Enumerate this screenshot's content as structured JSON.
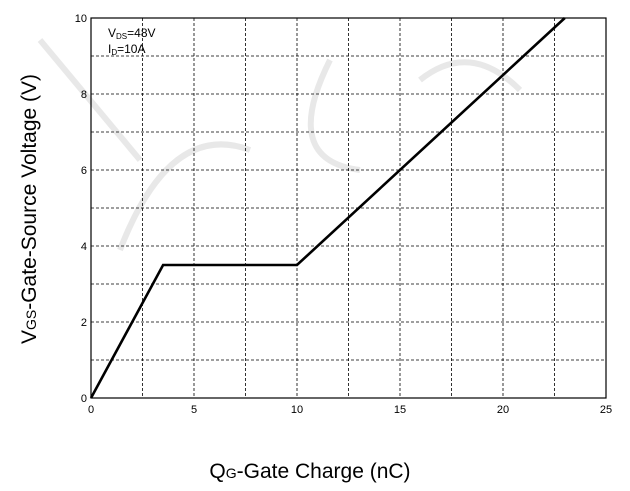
{
  "chart_data": {
    "type": "line",
    "title": "",
    "xlabel": {
      "main": "Q",
      "sub": "G",
      "rest": "-Gate Charge (nC)"
    },
    "ylabel": {
      "main": "V",
      "sub": "GS",
      "rest": "-Gate-Source Voltage (V)"
    },
    "xlim": [
      0,
      25
    ],
    "ylim": [
      0,
      10
    ],
    "xticks": [
      0,
      5,
      10,
      15,
      20,
      25
    ],
    "yticks": [
      0,
      2,
      4,
      6,
      8,
      10
    ],
    "grid": true,
    "annotations": [
      {
        "main": "V",
        "sub": "DS",
        "rest": "=48V"
      },
      {
        "main": "I",
        "sub": "D",
        "rest": "=10A"
      }
    ],
    "series": [
      {
        "x": [
          0,
          3.5,
          10,
          23
        ],
        "y": [
          0,
          3.5,
          3.5,
          10
        ]
      }
    ]
  }
}
